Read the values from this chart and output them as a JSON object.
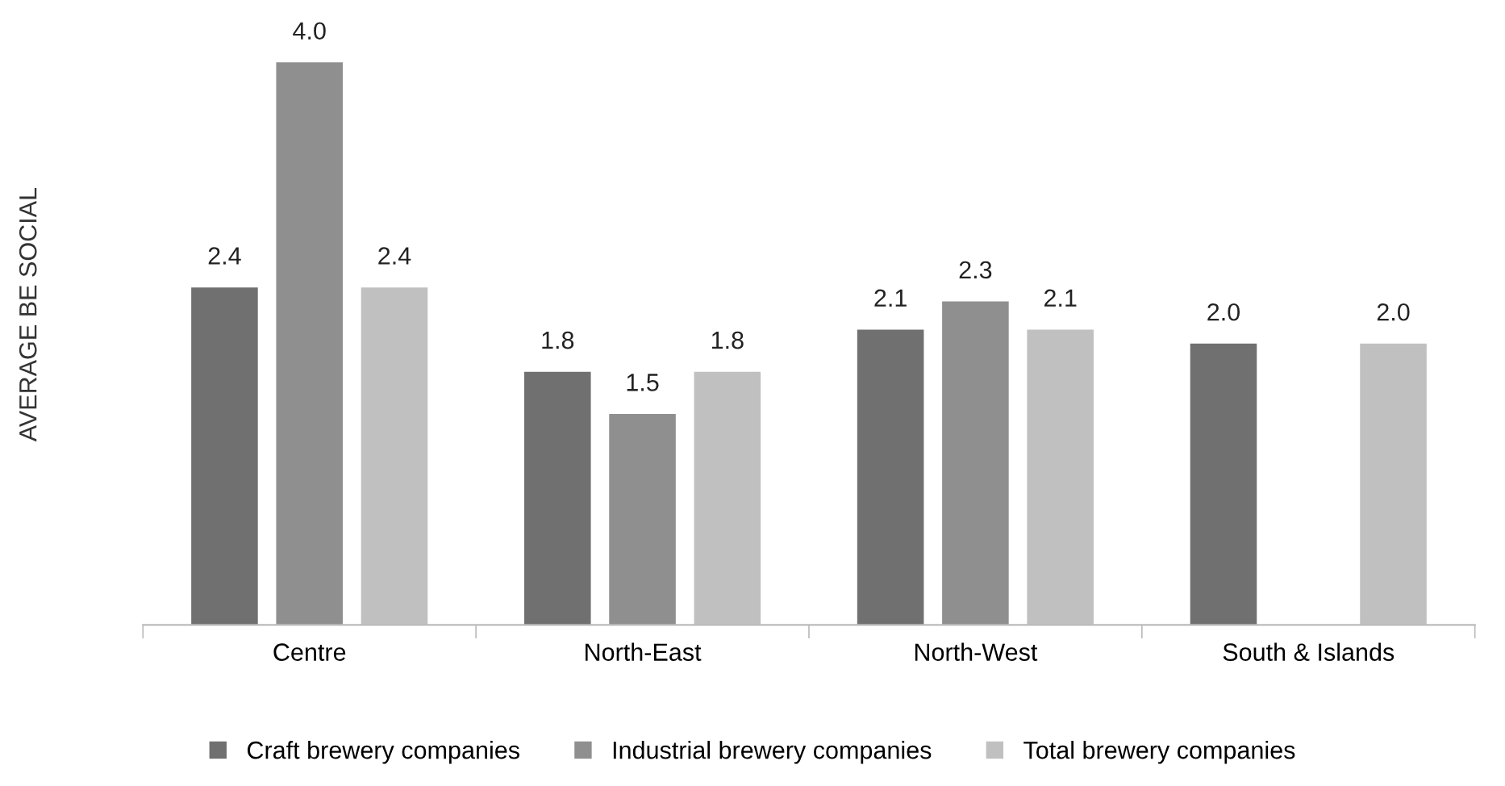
{
  "chart_data": {
    "type": "bar",
    "ylabel": "AVERAGE BE SOCIAL",
    "categories": [
      "Centre",
      "North-East",
      "North-West",
      "South & Islands"
    ],
    "series": [
      {
        "name": "Craft brewery companies",
        "color": "#707070",
        "values": [
          2.4,
          1.8,
          2.1,
          2.0
        ],
        "value_labels": [
          "2.4",
          "1.8",
          "2.1",
          "2.0"
        ]
      },
      {
        "name": "Industrial brewery companies",
        "color": "#8f8f8f",
        "values": [
          4.0,
          1.5,
          2.3,
          null
        ],
        "value_labels": [
          "4.0",
          "1.5",
          "2.3",
          null
        ]
      },
      {
        "name": "Total brewery companies",
        "color": "#c0c0c0",
        "values": [
          2.4,
          1.8,
          2.1,
          2.0
        ],
        "value_labels": [
          "2.4",
          "1.8",
          "2.1",
          "2.0"
        ]
      }
    ],
    "legend": "bottom",
    "grid": false
  }
}
